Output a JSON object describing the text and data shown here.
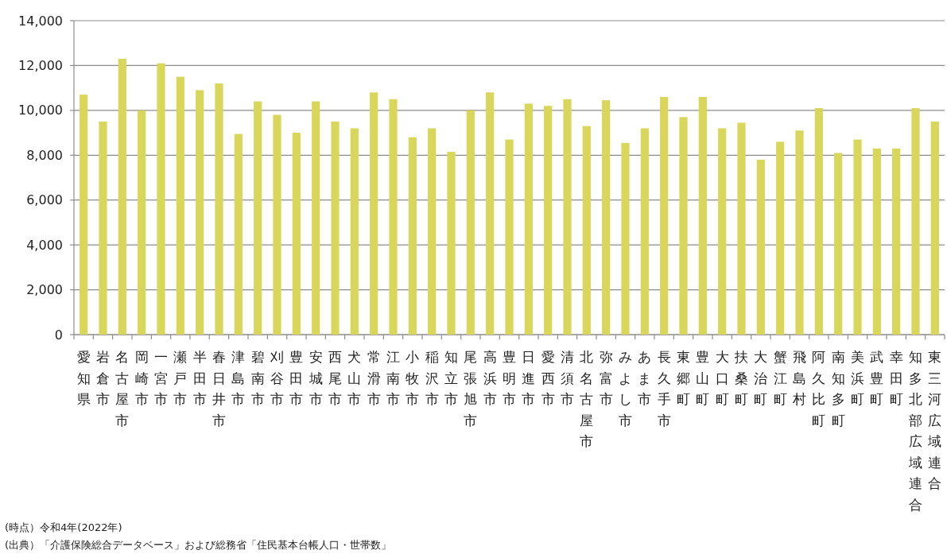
{
  "chart_data": {
    "type": "bar",
    "categories": [
      "愛知県",
      "岩倉市",
      "名古屋市",
      "岡崎市",
      "一宮市",
      "瀬戸市",
      "半田市",
      "春日井市",
      "津島市",
      "碧南市",
      "刈谷市",
      "豊田市",
      "安城市",
      "西尾市",
      "犬山市",
      "常滑市",
      "江南市",
      "小牧市",
      "稲沢市",
      "知立市",
      "尾張旭市",
      "高浜市",
      "豊明市",
      "日進市",
      "愛西市",
      "清須市",
      "北名古屋市",
      "弥富市",
      "みよし市",
      "あま市",
      "長久手市",
      "東郷町",
      "豊山町",
      "大口町",
      "扶桑町",
      "大治町",
      "蟹江町",
      "飛島村",
      "阿久比町",
      "南知多町",
      "美浜町",
      "武豊町",
      "幸田町",
      "知多北部広域連合",
      "東三河広域連合"
    ],
    "values": [
      10700,
      9500,
      12300,
      10000,
      12100,
      11500,
      10900,
      11200,
      8950,
      10400,
      9800,
      9000,
      10400,
      9500,
      9200,
      10800,
      10500,
      8800,
      9200,
      8150,
      10000,
      10800,
      8700,
      10300,
      10200,
      10500,
      9300,
      10450,
      8550,
      9200,
      10600,
      9700,
      10600,
      9200,
      9450,
      7800,
      8600,
      9100,
      10100,
      8100,
      8700,
      8300,
      8300,
      10100,
      9500
    ],
    "color": "#d9d65c",
    "ylim": [
      0,
      14000
    ],
    "yticks": [
      0,
      {
        "value": 2000,
        "label": "2,000"
      },
      {
        "value": 4000,
        "label": "4,000"
      },
      {
        "value": 6000,
        "label": "6,000"
      },
      {
        "value": 8000,
        "label": "8,000"
      },
      {
        "value": 10000,
        "label": "10,000"
      },
      {
        "value": 12000,
        "label": "12,000"
      },
      {
        "value": 14000,
        "label": "14,000"
      }
    ],
    "grid": "y",
    "annotations": [
      "(時点）令和4年(2022年)",
      "(出典）「介護保険総合データベース」および総務省「住民基本台帳人口・世帯数」"
    ]
  }
}
